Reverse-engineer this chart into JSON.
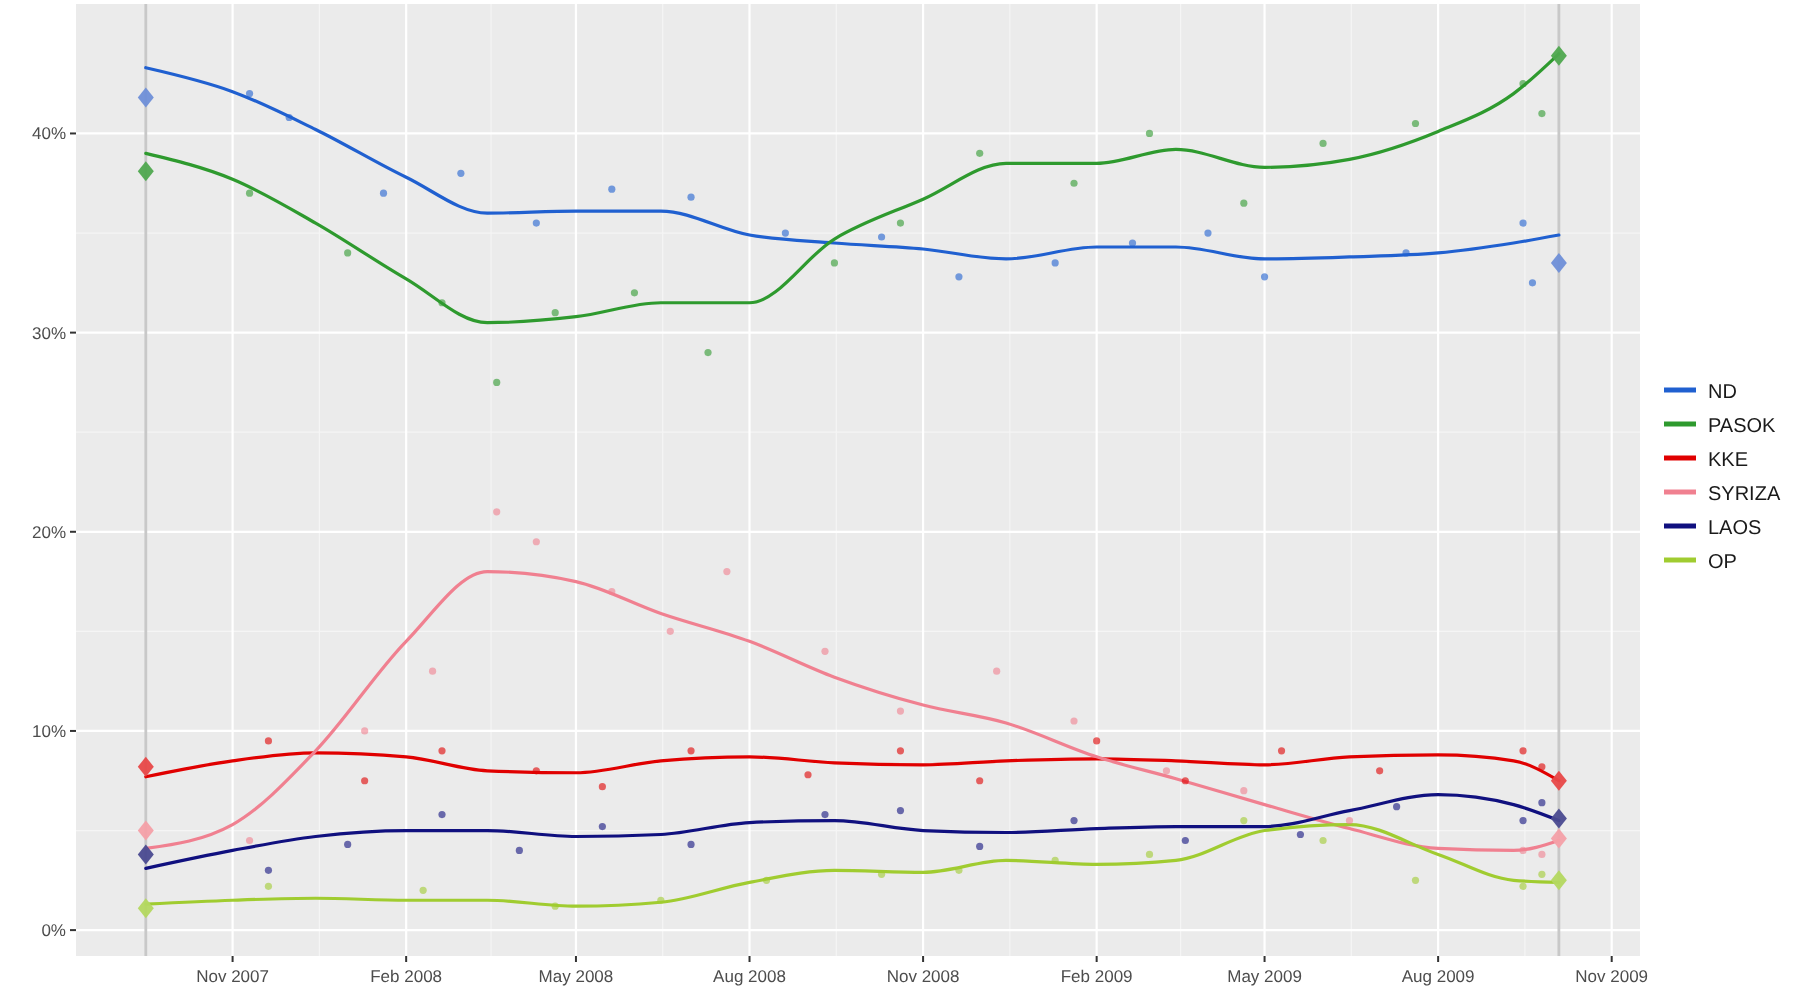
{
  "chart_data": {
    "type": "line",
    "xlim": [
      "2007-08-10",
      "2009-11-16"
    ],
    "ylim": [
      -1.3,
      46.5
    ],
    "xticks": [
      {
        "value": "2007-11-01",
        "label": "Nov 2007"
      },
      {
        "value": "2008-02-01",
        "label": "Feb 2008"
      },
      {
        "value": "2008-05-01",
        "label": "May 2008"
      },
      {
        "value": "2008-08-01",
        "label": "Aug 2008"
      },
      {
        "value": "2008-11-01",
        "label": "Nov 2008"
      },
      {
        "value": "2009-02-01",
        "label": "Feb 2009"
      },
      {
        "value": "2009-05-01",
        "label": "May 2009"
      },
      {
        "value": "2009-08-01",
        "label": "Aug 2009"
      },
      {
        "value": "2009-11-01",
        "label": "Nov 2009"
      }
    ],
    "yticks": [
      {
        "value": 0,
        "label": "0%"
      },
      {
        "value": 10,
        "label": "10%"
      },
      {
        "value": 20,
        "label": "20%"
      },
      {
        "value": 30,
        "label": "30%"
      },
      {
        "value": 40,
        "label": "40%"
      }
    ],
    "grid": true,
    "legend": "right",
    "line_style": "solid",
    "ref_lines": [
      {
        "axis": "x",
        "value": "2007-09-16",
        "color": "#c8c8c8"
      },
      {
        "axis": "x",
        "value": "2009-10-04",
        "color": "#c8c8c8"
      }
    ],
    "x": [
      "2007-09-16",
      "2007-11-01",
      "2007-12-15",
      "2008-02-01",
      "2008-03-15",
      "2008-05-01",
      "2008-06-15",
      "2008-08-01",
      "2008-09-15",
      "2008-11-01",
      "2008-12-15",
      "2009-02-01",
      "2009-03-15",
      "2009-05-01",
      "2009-06-15",
      "2009-08-01",
      "2009-09-10",
      "2009-10-04"
    ],
    "series": [
      {
        "name": "ND",
        "color": "#2060d0",
        "values": [
          43.3,
          42.1,
          40.2,
          37.8,
          36.0,
          36.1,
          36.1,
          34.9,
          34.5,
          34.2,
          33.7,
          34.3,
          34.3,
          33.7,
          33.8,
          34.0,
          34.5,
          34.9
        ]
      },
      {
        "name": "PASOK",
        "color": "#2e9a2e",
        "values": [
          39.0,
          37.7,
          35.5,
          32.7,
          30.5,
          30.8,
          31.5,
          31.5,
          34.7,
          36.7,
          38.5,
          38.5,
          39.2,
          38.3,
          38.7,
          40.1,
          42.0,
          44.0
        ]
      },
      {
        "name": "KKE",
        "color": "#e00000",
        "values": [
          7.7,
          8.5,
          8.9,
          8.7,
          8.0,
          7.9,
          8.5,
          8.7,
          8.4,
          8.3,
          8.5,
          8.6,
          8.5,
          8.3,
          8.7,
          8.8,
          8.5,
          7.5
        ]
      },
      {
        "name": "SYRIZA",
        "color": "#f08090",
        "values": [
          4.1,
          5.3,
          9.0,
          14.5,
          18.0,
          17.5,
          15.9,
          14.5,
          12.7,
          11.3,
          10.4,
          8.7,
          7.6,
          6.3,
          5.1,
          4.1,
          4.0,
          4.5
        ]
      },
      {
        "name": "LAOS",
        "color": "#10107f",
        "values": [
          3.1,
          4.0,
          4.7,
          5.0,
          5.0,
          4.7,
          4.8,
          5.4,
          5.5,
          5.0,
          4.9,
          5.1,
          5.2,
          5.2,
          6.0,
          6.8,
          6.3,
          5.5
        ]
      },
      {
        "name": "OP",
        "color": "#a0cc30",
        "values": [
          1.3,
          1.5,
          1.6,
          1.5,
          1.5,
          1.2,
          1.4,
          2.4,
          3.0,
          2.9,
          3.5,
          3.3,
          3.5,
          5.0,
          5.3,
          3.8,
          2.5,
          2.4
        ]
      },
      {
        "type": "scatter",
        "marker": "circle",
        "color": "#2060d0",
        "x": [
          "2007-11-10",
          "2007-12-01",
          "2008-01-20",
          "2008-03-01",
          "2008-04-10",
          "2008-05-20",
          "2008-07-01",
          "2008-08-20",
          "2008-10-10",
          "2008-11-20",
          "2009-01-10",
          "2009-02-20",
          "2009-04-01",
          "2009-05-01",
          "2009-07-15",
          "2009-09-15",
          "2009-09-20"
        ],
        "values": [
          42.0,
          40.8,
          37.0,
          38.0,
          35.5,
          37.2,
          36.8,
          35.0,
          34.8,
          32.8,
          33.5,
          34.5,
          35.0,
          32.8,
          34.0,
          35.5,
          32.5
        ]
      },
      {
        "type": "scatter",
        "marker": "circle",
        "color": "#2e9a2e",
        "x": [
          "2007-11-10",
          "2008-01-01",
          "2008-02-20",
          "2008-03-20",
          "2008-04-20",
          "2008-06-01",
          "2008-07-10",
          "2008-09-15",
          "2008-10-20",
          "2008-12-01",
          "2009-01-20",
          "2009-03-01",
          "2009-04-20",
          "2009-06-01",
          "2009-07-20",
          "2009-09-15",
          "2009-09-25"
        ],
        "values": [
          37.0,
          34.0,
          31.5,
          27.5,
          31.0,
          32.0,
          29.0,
          33.5,
          35.5,
          39.0,
          37.5,
          40.0,
          36.5,
          39.5,
          40.5,
          42.5,
          41.0
        ]
      },
      {
        "type": "scatter",
        "marker": "circle",
        "color": "#e00000",
        "x": [
          "2007-11-20",
          "2008-01-10",
          "2008-02-20",
          "2008-04-10",
          "2008-05-15",
          "2008-07-01",
          "2008-09-01",
          "2008-10-20",
          "2008-12-01",
          "2009-02-01",
          "2009-03-20",
          "2009-05-10",
          "2009-07-01",
          "2009-09-15",
          "2009-09-25"
        ],
        "values": [
          9.5,
          7.5,
          9.0,
          8.0,
          7.2,
          9.0,
          7.8,
          9.0,
          7.5,
          9.5,
          7.5,
          9.0,
          8.0,
          9.0,
          8.2
        ]
      },
      {
        "type": "scatter",
        "marker": "circle",
        "color": "#f08090",
        "x": [
          "2007-11-10",
          "2008-01-10",
          "2008-02-15",
          "2008-03-20",
          "2008-04-10",
          "2008-05-20",
          "2008-06-20",
          "2008-07-20",
          "2008-09-10",
          "2008-10-20",
          "2008-12-10",
          "2009-01-20",
          "2009-03-10",
          "2009-04-20",
          "2009-06-15",
          "2009-09-15",
          "2009-09-25"
        ],
        "values": [
          4.5,
          10.0,
          13.0,
          21.0,
          19.5,
          17.0,
          15.0,
          18.0,
          14.0,
          11.0,
          13.0,
          10.5,
          8.0,
          7.0,
          5.5,
          4.0,
          3.8
        ]
      },
      {
        "type": "scatter",
        "marker": "circle",
        "color": "#10107f",
        "x": [
          "2007-11-20",
          "2008-01-01",
          "2008-02-20",
          "2008-04-01",
          "2008-05-15",
          "2008-07-01",
          "2008-09-10",
          "2008-10-20",
          "2008-12-01",
          "2009-01-20",
          "2009-03-20",
          "2009-05-20",
          "2009-07-10",
          "2009-09-15",
          "2009-09-25"
        ],
        "values": [
          3.0,
          4.3,
          5.8,
          4.0,
          5.2,
          4.3,
          5.8,
          6.0,
          4.2,
          5.5,
          4.5,
          4.8,
          6.2,
          5.5,
          6.4
        ]
      },
      {
        "type": "scatter",
        "marker": "circle",
        "color": "#a0cc30",
        "x": [
          "2007-11-20",
          "2008-02-10",
          "2008-04-20",
          "2008-06-15",
          "2008-08-10",
          "2008-10-10",
          "2008-11-20",
          "2009-01-10",
          "2009-03-01",
          "2009-04-20",
          "2009-06-01",
          "2009-07-20",
          "2009-09-15",
          "2009-09-25"
        ],
        "values": [
          2.2,
          2.0,
          1.2,
          1.5,
          2.5,
          2.8,
          3.0,
          3.5,
          3.8,
          5.5,
          4.5,
          2.5,
          2.2,
          2.8
        ]
      },
      {
        "type": "scatter",
        "marker": "diamond",
        "color": "#6f8fd8",
        "x": [
          "2007-09-16",
          "2009-10-04"
        ],
        "values": [
          41.8,
          33.5
        ]
      },
      {
        "type": "scatter",
        "marker": "diamond",
        "color": "#4fa84f",
        "x": [
          "2007-09-16",
          "2009-10-04"
        ],
        "values": [
          38.1,
          43.9
        ]
      },
      {
        "type": "scatter",
        "marker": "diamond",
        "color": "#e84848",
        "x": [
          "2007-09-16",
          "2009-10-04"
        ],
        "values": [
          8.2,
          7.5
        ]
      },
      {
        "type": "scatter",
        "marker": "diamond",
        "color": "#f4a0a8",
        "x": [
          "2007-09-16",
          "2009-10-04"
        ],
        "values": [
          5.0,
          4.6
        ]
      },
      {
        "type": "scatter",
        "marker": "diamond",
        "color": "#4a4a90",
        "x": [
          "2007-09-16",
          "2009-10-04"
        ],
        "values": [
          3.8,
          5.6
        ]
      },
      {
        "type": "scatter",
        "marker": "diamond",
        "color": "#b4d860",
        "x": [
          "2007-09-16",
          "2009-10-04"
        ],
        "values": [
          1.1,
          2.5
        ]
      }
    ]
  }
}
